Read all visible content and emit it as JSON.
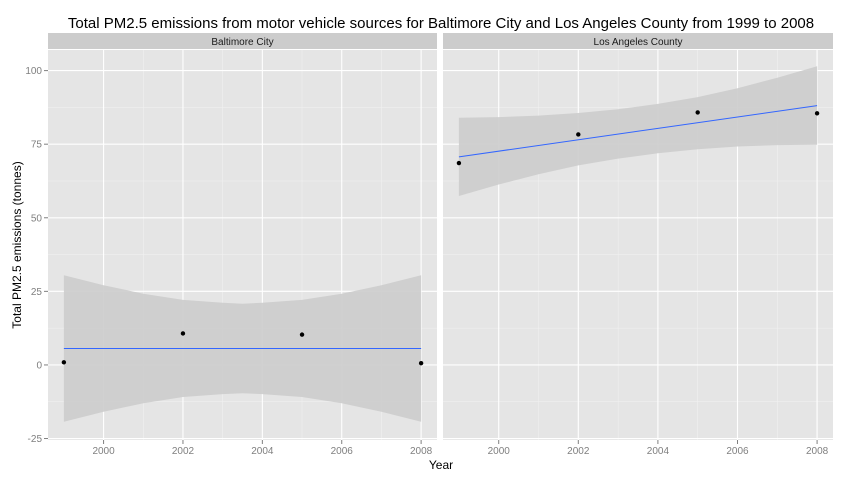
{
  "chart_data": {
    "type": "scatter",
    "title": "Total PM2.5 emissions from motor vehicle sources for Baltimore City and Los Angeles County from 1999 to 2008",
    "xlabel": "Year",
    "ylabel": "Total PM2.5 emissions (tonnes)",
    "x_ticks": [
      "2000",
      "2002",
      "2004",
      "2006",
      "2008"
    ],
    "y_ticks": [
      "-25",
      "0",
      "25",
      "50",
      "75",
      "100"
    ],
    "xlim": [
      1998.6,
      2008.4
    ],
    "ylim": [
      -25.5,
      107
    ],
    "grid": true,
    "background": "#e5e5e5",
    "strip_color": "#cccccc",
    "fit_color": "#3366ff",
    "band_color": "#cccccc",
    "point_color": "#000000",
    "facets": [
      {
        "name": "Baltimore City",
        "x": [
          1999,
          2002,
          2005,
          2008
        ],
        "y": [
          0.9,
          10.7,
          10.3,
          0.6
        ],
        "fit": {
          "x": [
            1999,
            2008
          ],
          "y": [
            5.6,
            5.6
          ]
        },
        "band": {
          "x": [
            1999,
            2000,
            2001,
            2002,
            2003,
            2003.5,
            2004,
            2005,
            2006,
            2007,
            2008
          ],
          "upper": [
            30.5,
            27.1,
            24.2,
            22.1,
            21.1,
            20.8,
            21.1,
            22.1,
            24.2,
            27.1,
            30.5
          ],
          "lower": [
            -19.3,
            -15.9,
            -13.0,
            -10.9,
            -9.9,
            -9.6,
            -9.9,
            -10.9,
            -13.0,
            -15.9,
            -19.3
          ]
        }
      },
      {
        "name": "Los Angeles County",
        "x": [
          1999,
          2002,
          2005,
          2008
        ],
        "y": [
          68.6,
          78.3,
          85.8,
          85.5
        ],
        "fit": {
          "x": [
            1999,
            2008
          ],
          "y": [
            70.7,
            88.1
          ]
        },
        "band": {
          "x": [
            1999,
            2000,
            2001,
            2002,
            2003,
            2004,
            2005,
            2006,
            2007,
            2008
          ],
          "upper": [
            84.0,
            84.2,
            84.7,
            85.6,
            86.9,
            88.7,
            91.0,
            94.0,
            97.6,
            101.5
          ],
          "lower": [
            57.4,
            61.3,
            64.8,
            67.8,
            70.1,
            71.9,
            73.3,
            74.2,
            74.7,
            74.8
          ]
        }
      }
    ]
  }
}
